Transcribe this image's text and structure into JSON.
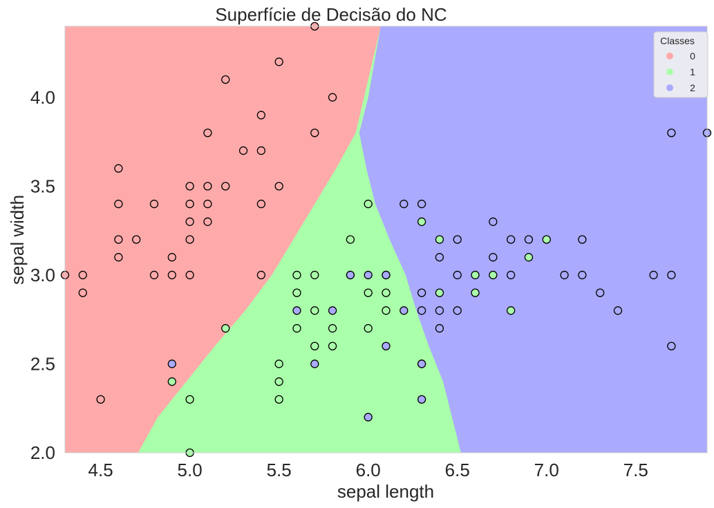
{
  "chart_data": {
    "type": "scatter",
    "title": "Superfície de Decisão do NC",
    "xlabel": "sepal length",
    "ylabel": "sepal width",
    "xlim": [
      4.3,
      7.9
    ],
    "ylim": [
      2.0,
      4.4
    ],
    "xticks": [
      "4.5",
      "5.0",
      "5.5",
      "6.0",
      "6.5",
      "7.0",
      "7.5"
    ],
    "yticks": [
      "2.0",
      "2.5",
      "3.0",
      "3.5",
      "4.0"
    ],
    "grid": false,
    "legend": {
      "title": "Classes",
      "placement": "top-right",
      "entries": [
        "0",
        "1",
        "2"
      ]
    },
    "colors": {
      "0": "#FFAAAA",
      "1": "#AAFFAA",
      "2": "#AAAAFF",
      "edge": "#000000",
      "legend_bg": "#EAEAF2"
    },
    "decision_regions": {
      "description_note": "background decision regions of the classifier",
      "boundary_0": [
        [
          2.0,
          4.71
        ],
        [
          2.2,
          4.82
        ],
        [
          2.4,
          4.98
        ],
        [
          2.6,
          5.14
        ],
        [
          2.8,
          5.31
        ],
        [
          3.0,
          5.46
        ],
        [
          3.2,
          5.58
        ],
        [
          3.4,
          5.7
        ],
        [
          3.6,
          5.82
        ],
        [
          3.8,
          5.93
        ],
        [
          4.4,
          6.07
        ]
      ],
      "boundary_2": [
        [
          2.0,
          6.52
        ],
        [
          2.2,
          6.47
        ],
        [
          2.4,
          6.42
        ],
        [
          2.6,
          6.34
        ],
        [
          2.8,
          6.27
        ],
        [
          3.0,
          6.21
        ],
        [
          3.2,
          6.12
        ],
        [
          3.4,
          6.04
        ],
        [
          3.6,
          5.99
        ],
        [
          3.8,
          5.95
        ],
        [
          4.0,
          6.0
        ],
        [
          4.4,
          6.07
        ]
      ]
    },
    "series": [
      {
        "name": "0",
        "points": [
          [
            4.3,
            3.0
          ],
          [
            4.4,
            3.0
          ],
          [
            4.4,
            2.9
          ],
          [
            4.5,
            2.3
          ],
          [
            4.6,
            3.6
          ],
          [
            4.6,
            3.4
          ],
          [
            4.6,
            3.2
          ],
          [
            4.6,
            3.1
          ],
          [
            4.7,
            3.2
          ],
          [
            4.8,
            3.4
          ],
          [
            4.8,
            3.0
          ],
          [
            4.9,
            3.1
          ],
          [
            4.9,
            3.0
          ],
          [
            5.0,
            3.5
          ],
          [
            5.0,
            3.4
          ],
          [
            5.0,
            3.3
          ],
          [
            5.0,
            3.2
          ],
          [
            5.0,
            3.0
          ],
          [
            5.1,
            3.8
          ],
          [
            5.1,
            3.5
          ],
          [
            5.1,
            3.4
          ],
          [
            5.1,
            3.3
          ],
          [
            5.2,
            4.1
          ],
          [
            5.2,
            3.5
          ],
          [
            5.3,
            3.7
          ],
          [
            5.4,
            3.9
          ],
          [
            5.4,
            3.7
          ],
          [
            5.4,
            3.4
          ],
          [
            5.4,
            3.0
          ],
          [
            5.5,
            4.2
          ],
          [
            5.5,
            3.5
          ],
          [
            5.7,
            4.4
          ],
          [
            5.7,
            3.8
          ],
          [
            5.8,
            4.0
          ]
        ]
      },
      {
        "name": "1",
        "points": [
          [
            4.9,
            2.4
          ],
          [
            5.0,
            2.3
          ],
          [
            5.0,
            2.0
          ],
          [
            5.2,
            2.7
          ],
          [
            5.5,
            2.5
          ],
          [
            5.5,
            2.4
          ],
          [
            5.5,
            2.3
          ],
          [
            5.6,
            3.0
          ],
          [
            5.6,
            2.9
          ],
          [
            5.6,
            2.7
          ],
          [
            5.7,
            3.0
          ],
          [
            5.7,
            2.8
          ],
          [
            5.7,
            2.6
          ],
          [
            5.8,
            2.7
          ],
          [
            5.8,
            2.6
          ],
          [
            5.9,
            3.2
          ],
          [
            5.9,
            3.0
          ],
          [
            6.0,
            3.4
          ],
          [
            6.0,
            2.9
          ],
          [
            6.0,
            2.7
          ],
          [
            6.1,
            3.0
          ],
          [
            6.1,
            2.9
          ],
          [
            6.1,
            2.8
          ],
          [
            6.3,
            3.3
          ],
          [
            6.3,
            2.5
          ],
          [
            6.4,
            3.2
          ],
          [
            6.4,
            2.9
          ],
          [
            6.6,
            3.0
          ],
          [
            6.6,
            2.9
          ],
          [
            6.7,
            3.0
          ],
          [
            6.8,
            2.8
          ],
          [
            6.9,
            3.1
          ],
          [
            7.0,
            3.2
          ]
        ]
      },
      {
        "name": "2",
        "points": [
          [
            4.9,
            2.5
          ],
          [
            5.6,
            2.8
          ],
          [
            5.7,
            2.5
          ],
          [
            5.8,
            2.8
          ],
          [
            5.9,
            3.0
          ],
          [
            6.0,
            3.0
          ],
          [
            6.0,
            2.2
          ],
          [
            6.1,
            3.0
          ],
          [
            6.1,
            2.6
          ],
          [
            6.2,
            3.4
          ],
          [
            6.2,
            2.8
          ],
          [
            6.3,
            3.4
          ],
          [
            6.3,
            2.9
          ],
          [
            6.3,
            2.8
          ],
          [
            6.3,
            2.5
          ],
          [
            6.3,
            2.3
          ],
          [
            6.4,
            3.1
          ],
          [
            6.4,
            2.8
          ],
          [
            6.4,
            2.7
          ],
          [
            6.5,
            3.2
          ],
          [
            6.5,
            3.0
          ],
          [
            6.5,
            2.8
          ],
          [
            6.7,
            3.3
          ],
          [
            6.7,
            3.1
          ],
          [
            6.8,
            3.2
          ],
          [
            6.8,
            3.0
          ],
          [
            6.9,
            3.2
          ],
          [
            7.1,
            3.0
          ],
          [
            7.2,
            3.2
          ],
          [
            7.2,
            3.0
          ],
          [
            7.3,
            2.9
          ],
          [
            7.4,
            2.8
          ],
          [
            7.6,
            3.0
          ],
          [
            7.7,
            3.8
          ],
          [
            7.7,
            3.0
          ],
          [
            7.7,
            2.6
          ],
          [
            7.9,
            3.8
          ]
        ]
      }
    ]
  }
}
